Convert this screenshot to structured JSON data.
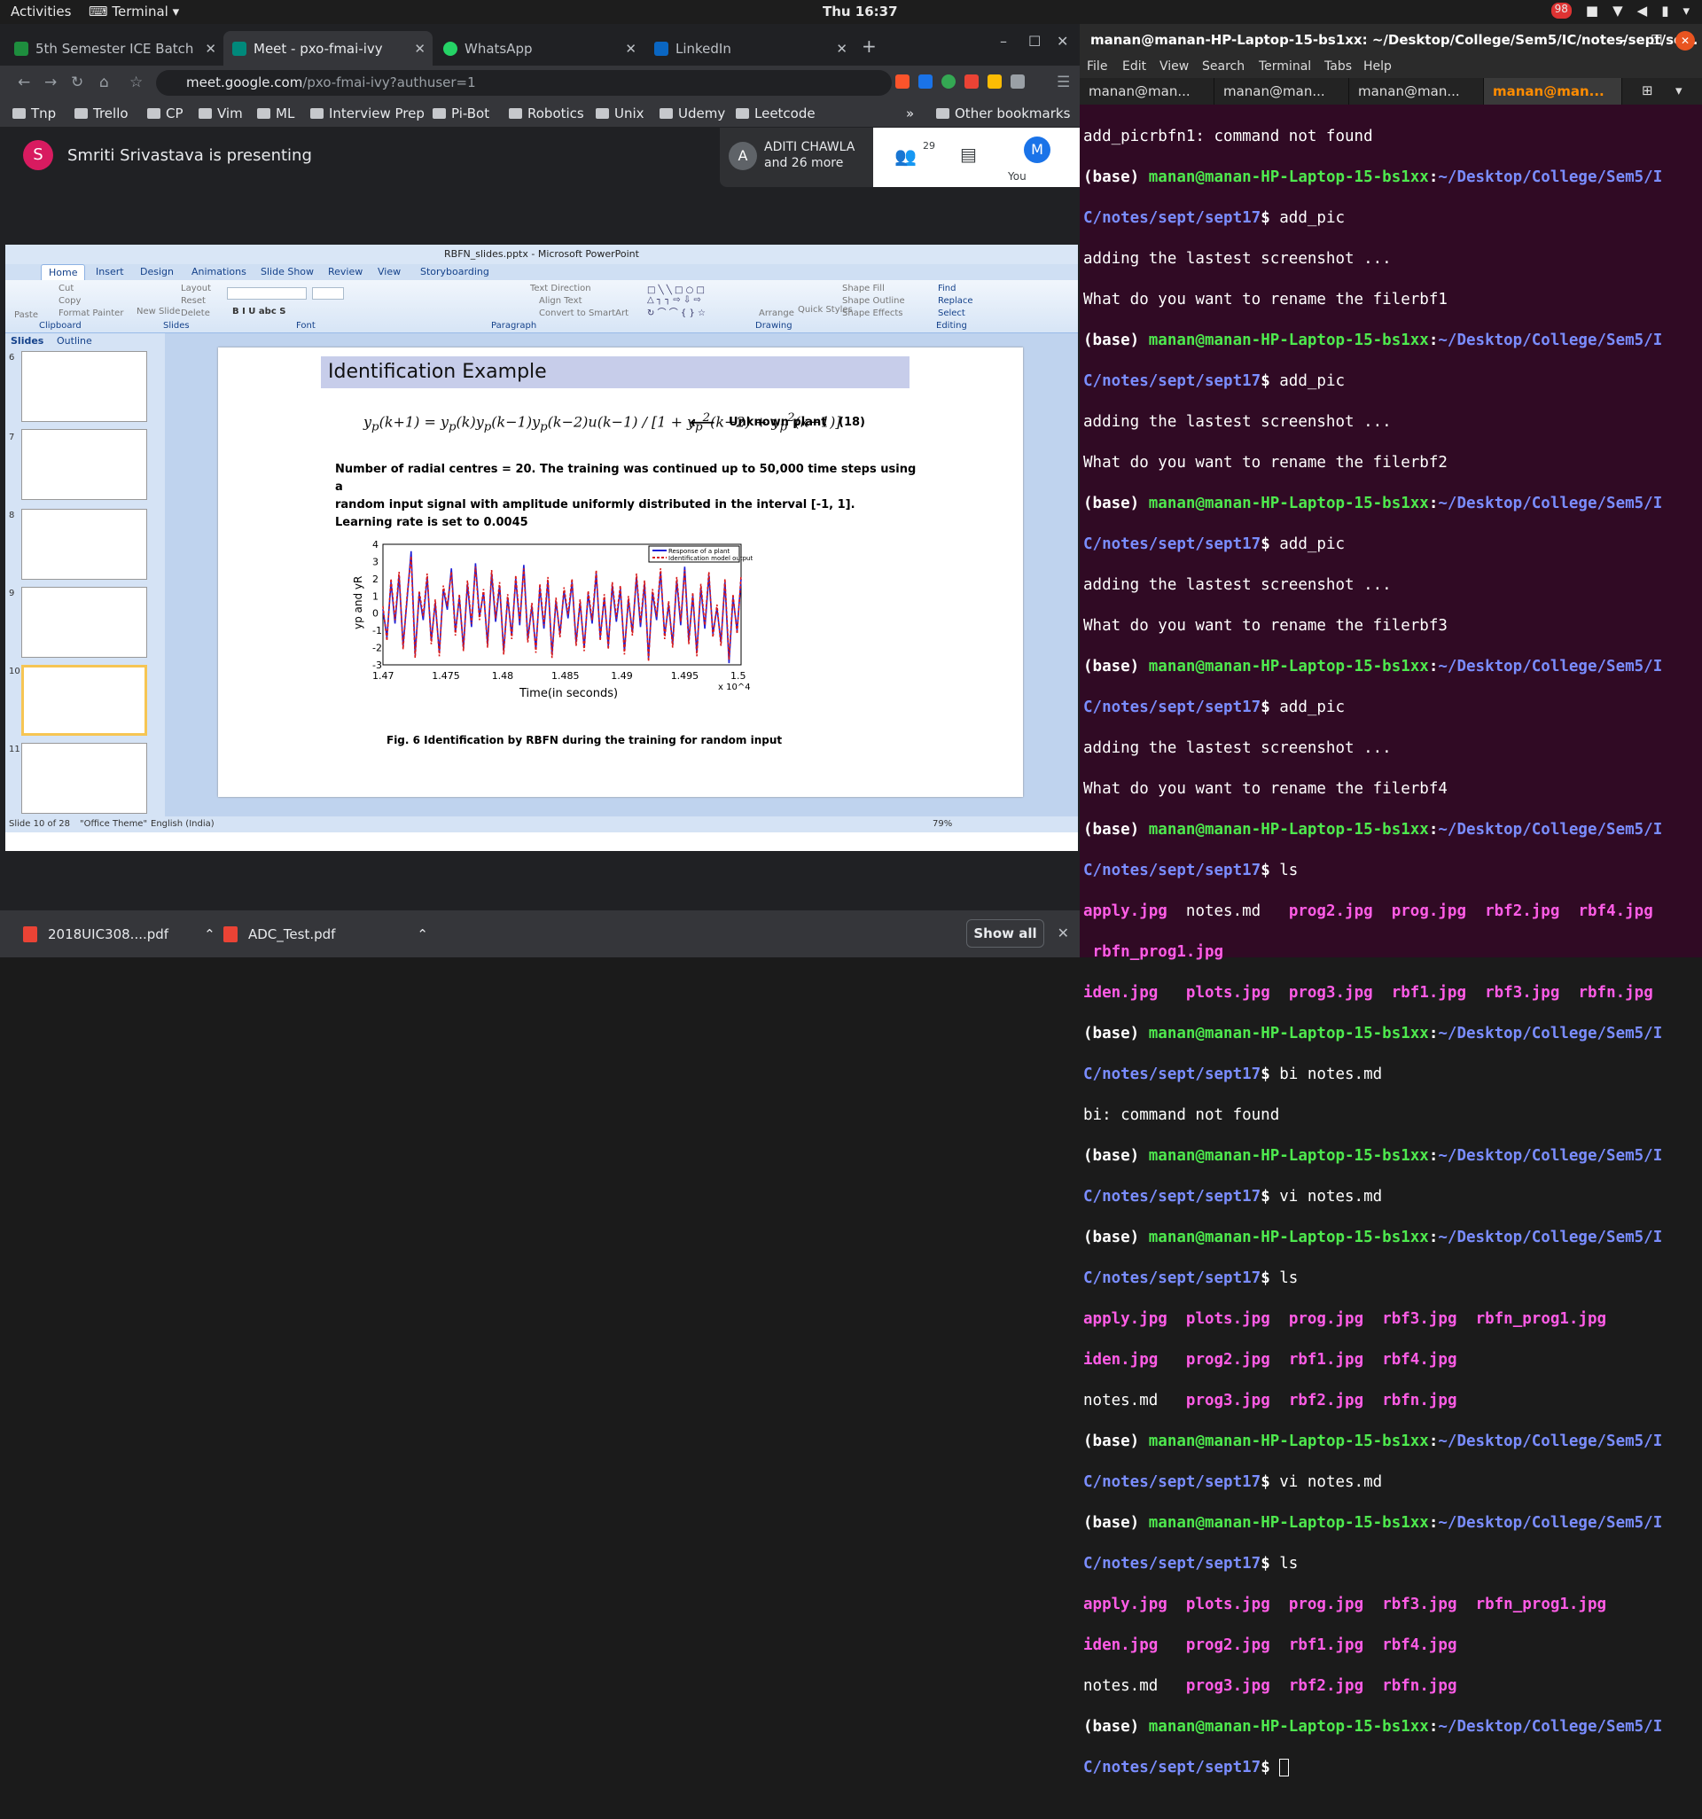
{
  "topbar": {
    "activities": "Activities",
    "app": "Terminal",
    "clock": "Thu 16:37",
    "badge": "98"
  },
  "browser": {
    "tabs": [
      {
        "label": "5th Semester ICE Batch"
      },
      {
        "label": "Meet - pxo-fmai-ivy"
      },
      {
        "label": "WhatsApp"
      },
      {
        "label": "LinkedIn"
      }
    ],
    "url_host": "meet.google.com",
    "url_path": "/pxo-fmai-ivy?authuser=1",
    "bookmarks": [
      "Tnp",
      "Trello",
      "CP",
      "Vim",
      "ML",
      "Interview Prep",
      "Pi-Bot",
      "Robotics",
      "Unix",
      "Udemy",
      "Leetcode"
    ],
    "other_bookmarks": "Other bookmarks"
  },
  "meet": {
    "presenter_initial": "S",
    "presenting": "Smriti Srivastava is presenting",
    "participant_initial": "A",
    "participant_name": "ADITI CHAWLA",
    "participant_more": "and 26 more",
    "people_count": "29",
    "you_label": "You",
    "you_initial": "M"
  },
  "ppt": {
    "title": "RBFN_slides.pptx - Microsoft PowerPoint",
    "ribbon_tabs": [
      "Home",
      "Insert",
      "Design",
      "Animations",
      "Slide Show",
      "Review",
      "View",
      "Storyboarding"
    ],
    "groups": [
      "Clipboard",
      "Slides",
      "Font",
      "Paragraph",
      "Drawing",
      "Editing"
    ],
    "buttons": {
      "paste": "Paste",
      "cut": "Cut",
      "copy": "Copy",
      "format_painter": "Format Painter",
      "new_slide": "New Slide",
      "layout": "Layout",
      "reset": "Reset",
      "delete": "Delete",
      "text_direction": "Text Direction",
      "align_text": "Align Text",
      "convert": "Convert to SmartArt",
      "arrange": "Arrange",
      "quick_styles": "Quick Styles",
      "shape_fill": "Shape Fill",
      "shape_outline": "Shape Outline",
      "shape_effects": "Shape Effects",
      "find": "Find",
      "replace": "Replace",
      "select": "Select"
    },
    "pane_tabs": [
      "Slides",
      "Outline"
    ],
    "thumb_numbers": [
      "6",
      "7",
      "8",
      "9",
      "10",
      "11"
    ],
    "slide": {
      "heading": "Identification Example",
      "eq_label": "Unknown plant",
      "eq_number": "(18)",
      "text_lines": [
        "Number of radial centres = 20. The training was continued up to 50,000 time steps using a",
        "random input signal with amplitude uniformly distributed in the interval  [-1, 1].",
        "Learning rate is set to 0.0045"
      ],
      "caption": "Fig. 6 Identification by RBFN during the training for random input"
    },
    "status": {
      "slide": "Slide 10 of 28",
      "theme": "\"Office Theme\"",
      "lang": "English (India)",
      "zoom": "79%"
    }
  },
  "chart_data": {
    "type": "line",
    "xlabel": "Time(in seconds)",
    "ylabel": "yp and yR",
    "x_multiplier": "x 10^4",
    "xlim": [
      1.47,
      1.5
    ],
    "ylim": [
      -3,
      4
    ],
    "xticks": [
      "1.47",
      "1.475",
      "1.48",
      "1.485",
      "1.49",
      "1.495",
      "1.5"
    ],
    "yticks": [
      "4",
      "3",
      "2",
      "1",
      "0",
      "-1",
      "-2",
      "-3"
    ],
    "legend_position": "top-right",
    "series": [
      {
        "name": "Response of a plant",
        "color": "#1f1fd6",
        "style": "solid",
        "values": [
          0.2,
          -1.4,
          1.8,
          -0.6,
          2.2,
          -1.9,
          0.8,
          3.6,
          -2.4,
          1.1,
          -0.4,
          2.1,
          -1.6,
          0.6,
          -2.3,
          1.4,
          0.2,
          2.6,
          -1.1,
          0.9,
          -2.0,
          1.7,
          -0.8,
          2.9,
          -0.2,
          1.2,
          -1.8,
          2.3,
          -0.5,
          1.6,
          -2.2,
          0.9,
          -1.3,
          2.0,
          -0.7,
          2.8,
          -1.5,
          0.4,
          -2.1,
          1.5,
          -0.9,
          1.9,
          -2.4,
          0.7,
          -1.2,
          1.3,
          -0.3,
          1.8,
          -1.7,
          0.6,
          -2.0,
          1.1,
          -0.6,
          2.3,
          -1.4,
          0.9,
          -1.9,
          1.6,
          -0.5,
          1.4,
          -2.2,
          0.8,
          -1.1,
          2.1,
          -0.8,
          1.7,
          -2.6,
          1.2,
          -0.4,
          2.4,
          -1.3,
          0.5,
          -1.8,
          1.9,
          -0.7,
          2.7,
          -1.6,
          1.0,
          -2.3,
          1.5,
          -0.9,
          2.2,
          -1.2,
          0.3,
          -1.7,
          1.8,
          -2.9,
          0.9,
          -1.0,
          2.0
        ]
      },
      {
        "name": "Identification model output",
        "color": "#d81b1b",
        "style": "dashed",
        "values": [
          0.4,
          -1.6,
          2.0,
          -0.4,
          2.4,
          -2.1,
          1.0,
          3.3,
          -2.6,
          1.3,
          -0.2,
          2.3,
          -1.8,
          0.8,
          -2.5,
          1.6,
          0.4,
          2.4,
          -1.3,
          1.1,
          -2.2,
          1.9,
          -0.6,
          2.7,
          -0.4,
          1.4,
          -2.0,
          2.5,
          -0.3,
          1.8,
          -2.4,
          1.1,
          -1.5,
          2.2,
          -0.5,
          2.6,
          -1.7,
          0.6,
          -2.3,
          1.7,
          -0.7,
          2.1,
          -2.6,
          0.9,
          -1.4,
          1.5,
          -0.1,
          2.0,
          -1.9,
          0.8,
          -2.2,
          1.3,
          -0.4,
          2.5,
          -1.6,
          1.1,
          -2.1,
          1.8,
          -0.3,
          1.6,
          -2.4,
          1.0,
          -1.3,
          2.3,
          -0.6,
          1.9,
          -2.8,
          1.4,
          -0.2,
          2.6,
          -1.5,
          0.7,
          -2.0,
          2.1,
          -0.5,
          2.5,
          -1.8,
          1.2,
          -2.5,
          1.7,
          -0.7,
          2.4,
          -1.4,
          0.5,
          -1.9,
          2.0,
          -2.7,
          1.1,
          -1.2,
          2.2
        ]
      }
    ]
  },
  "downloads": [
    {
      "name": "2018UIC308....pdf"
    },
    {
      "name": "ADC_Test.pdf"
    }
  ],
  "show_all": "Show all",
  "terminal": {
    "title": "manan@manan-HP-Laptop-15-bs1xx: ~/Desktop/College/Sem5/IC/notes/sept/se...",
    "menu": [
      "File",
      "Edit",
      "View",
      "Search",
      "Terminal",
      "Tabs",
      "Help"
    ],
    "tabs": [
      "manan@man...",
      "manan@man...",
      "manan@man...",
      "manan@man..."
    ],
    "prompt_user": "manan@manan-HP-Laptop-15-bs1xx",
    "path1": "~/Desktop/College/Sem5/I",
    "path2": "C/notes/sept/sept17",
    "lines": {
      "l0": "add_picrbfn1: command not found",
      "c1": "add_pic",
      "o1a": "adding the lastest screenshot ...",
      "o1b": "What do you want to rename the filerbf1",
      "c2": "add_pic",
      "o2a": "adding the lastest screenshot ...",
      "o2b": "What do you want to rename the filerbf2",
      "c3": "add_pic",
      "o3a": "adding the lastest screenshot ...",
      "o3b": "What do you want to rename the filerbf3",
      "c4": "add_pic",
      "o4a": "adding the lastest screenshot ...",
      "o4b": "What do you want to rename the filerbf4",
      "c5": "ls",
      "ls1a": "apply.jpg",
      "ls1b": "notes.md",
      "ls1c": "prog2.jpg",
      "ls1d": "prog.jpg",
      "ls1e": "rbf2.jpg",
      "ls1f": "rbf4.jpg",
      "ls1g": "rbfn_prog1.jpg",
      "ls1h": "iden.jpg",
      "ls1i": "plots.jpg",
      "ls1j": "prog3.jpg",
      "ls1k": "rbf1.jpg",
      "ls1l": "rbf3.jpg",
      "ls1m": "rbfn.jpg",
      "c6": "bi notes.md",
      "o6": "bi: command not found",
      "c7": "vi notes.md",
      "c8": "ls",
      "ls2a": "apply.jpg",
      "ls2b": "plots.jpg",
      "ls2c": "prog.jpg",
      "ls2d": "rbf3.jpg",
      "ls2e": "rbfn_prog1.jpg",
      "ls2f": "iden.jpg",
      "ls2g": "prog2.jpg",
      "ls2h": "rbf1.jpg",
      "ls2i": "rbf4.jpg",
      "ls2j": "notes.md",
      "ls2k": "prog3.jpg",
      "ls2l": "rbf2.jpg",
      "ls2m": "rbfn.jpg",
      "c9": "vi notes.md",
      "c10": "ls",
      "ls3a": "apply.jpg",
      "ls3b": "plots.jpg",
      "ls3c": "prog.jpg",
      "ls3d": "rbf3.jpg",
      "ls3e": "rbfn_prog1.jpg",
      "ls3f": "iden.jpg",
      "ls3g": "prog2.jpg",
      "ls3h": "rbf1.jpg",
      "ls3i": "rbf4.jpg",
      "ls3j": "notes.md",
      "ls3k": "prog3.jpg",
      "ls3l": "rbf2.jpg",
      "ls3m": "rbfn.jpg"
    }
  }
}
